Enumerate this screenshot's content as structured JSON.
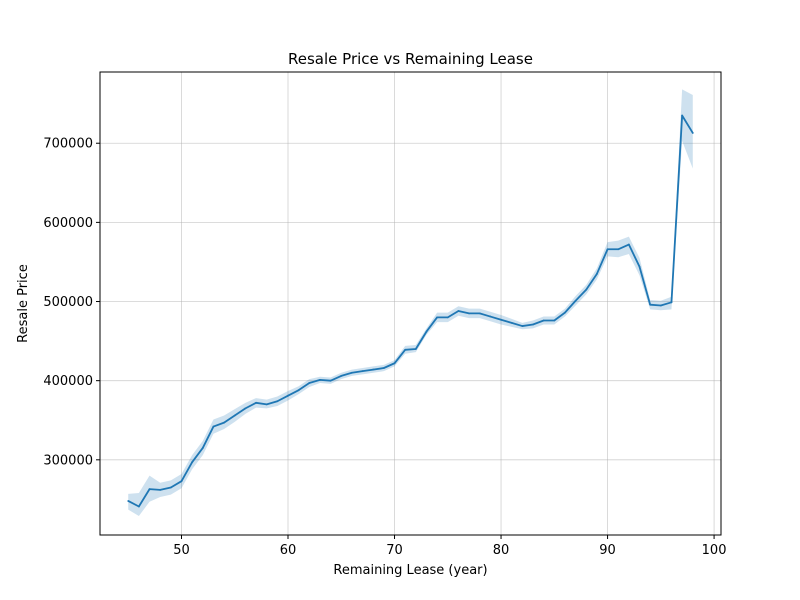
{
  "chart_data": {
    "type": "line",
    "title": "Resale Price vs Remaining Lease",
    "xlabel": "Remaining Lease (year)",
    "ylabel": "Resale Price",
    "xlim": [
      42.35,
      100.65
    ],
    "ylim": [
      205000,
      790000
    ],
    "xticks": [
      50,
      60,
      70,
      80,
      90,
      100
    ],
    "yticks": [
      300000,
      400000,
      500000,
      600000,
      700000
    ],
    "grid": true,
    "colors": {
      "line": "#1f77b4",
      "band": "#1f77b4",
      "grid": "#b0b0b0",
      "axes": "#000000"
    },
    "series": [
      {
        "x": [
          45,
          46,
          47,
          48,
          49,
          50,
          51,
          52,
          53,
          54,
          55,
          56,
          57,
          58,
          59,
          60,
          61,
          62,
          63,
          64,
          65,
          66,
          67,
          68,
          69,
          70,
          71,
          72,
          73,
          74,
          75,
          76,
          77,
          78,
          79,
          80,
          81,
          82,
          83,
          84,
          85,
          86,
          87,
          88,
          89,
          90,
          91,
          92,
          93,
          94,
          95,
          96,
          97,
          98
        ],
        "y": [
          248000,
          241000,
          263000,
          262000,
          265000,
          273000,
          297000,
          315000,
          342000,
          347000,
          356000,
          365000,
          372000,
          370000,
          374000,
          381000,
          388000,
          397000,
          401000,
          400000,
          406000,
          410000,
          412000,
          414000,
          416000,
          422000,
          439000,
          440000,
          462000,
          480000,
          480000,
          488000,
          485000,
          485000,
          481000,
          477000,
          473000,
          469000,
          471000,
          476000,
          476000,
          486000,
          501000,
          515000,
          535000,
          566000,
          566000,
          572000,
          544000,
          496000,
          495000,
          499000,
          735000,
          713000
        ],
        "ci_lower": [
          237000,
          229000,
          247000,
          253000,
          256000,
          264000,
          288000,
          306000,
          333000,
          339000,
          348000,
          358000,
          366000,
          365000,
          368000,
          375000,
          383000,
          392000,
          397000,
          396000,
          402000,
          406000,
          408000,
          410000,
          412000,
          418000,
          434000,
          436000,
          458000,
          474000,
          474000,
          482000,
          479000,
          479000,
          475000,
          471000,
          468000,
          465000,
          466000,
          471000,
          471000,
          481000,
          495000,
          509000,
          528000,
          557000,
          556000,
          560000,
          533000,
          490000,
          489000,
          490000,
          703000,
          668000
        ],
        "ci_upper": [
          257000,
          258000,
          280000,
          271000,
          274000,
          282000,
          306000,
          324000,
          351000,
          356000,
          364000,
          372000,
          378000,
          376000,
          380000,
          387000,
          393000,
          402000,
          405000,
          404000,
          410000,
          414000,
          416000,
          418000,
          420000,
          426000,
          444000,
          445000,
          466000,
          486000,
          486000,
          494000,
          491000,
          491000,
          487000,
          483000,
          478000,
          473000,
          476000,
          481000,
          481000,
          491000,
          507000,
          521000,
          542000,
          575000,
          577000,
          582000,
          555000,
          502000,
          501000,
          506000,
          768000,
          761000
        ]
      }
    ]
  }
}
